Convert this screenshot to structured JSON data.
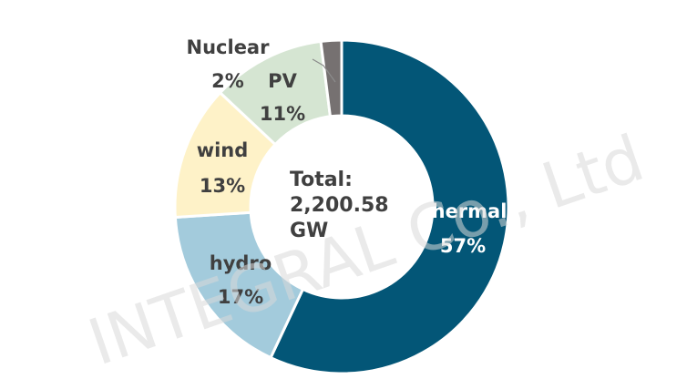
{
  "chart_data": {
    "type": "pie",
    "donut": true,
    "categories": [
      "thermal",
      "hydro",
      "wind",
      "PV",
      "Nuclear"
    ],
    "values": [
      57,
      17,
      13,
      11,
      2
    ],
    "percent_labels": [
      "57%",
      "17%",
      "13%",
      "11%",
      "2%"
    ],
    "colors": [
      "#035677",
      "#a3cbdc",
      "#fef2c8",
      "#d5e5d2",
      "#767171"
    ],
    "label_colors": [
      "#ffffff",
      "#404040",
      "#404040",
      "#404040",
      "#404040"
    ],
    "center_text": [
      "Total:",
      "2,200.58",
      "GW"
    ]
  },
  "watermark": "INTEGRAL Co., Ltd"
}
